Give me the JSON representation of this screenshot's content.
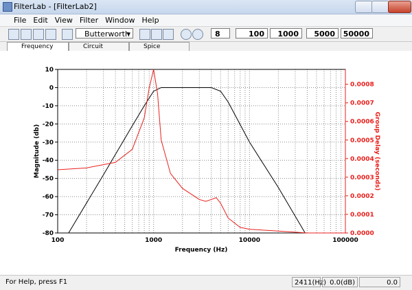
{
  "window": {
    "title": "FilterLab - [FilterLab2]"
  },
  "menu": [
    "File",
    "Edit",
    "View",
    "Filter",
    "Window",
    "Help"
  ],
  "toolbar": {
    "filter_type": "Butterworth",
    "order": "8",
    "frequencies": [
      "100",
      "1000",
      "5000",
      "50000"
    ]
  },
  "tabs": [
    "Frequency",
    "Circuit",
    "Spice"
  ],
  "chart_data": {
    "type": "line",
    "xlabel": "Frequency (Hz)",
    "ylabel": "Magnitude (db)",
    "y2label": "Group Delay (seconds)",
    "xscale": "log",
    "xlim": [
      100,
      100000
    ],
    "xticks": [
      100,
      1000,
      10000,
      100000
    ],
    "xminorticks": [
      200,
      300,
      400,
      500,
      600,
      700,
      800,
      900,
      2000,
      3000,
      4000,
      5000,
      6000,
      7000,
      8000,
      9000,
      20000,
      30000,
      40000,
      50000,
      60000,
      70000,
      80000,
      90000
    ],
    "ylim": [
      -80,
      10
    ],
    "yticks": [
      10,
      0,
      -10,
      -20,
      -30,
      -40,
      -50,
      -60,
      -70,
      -80
    ],
    "y2lim": [
      0,
      0.00088
    ],
    "y2ticks": [
      {
        "value": 0,
        "label": "0.0000"
      },
      0.0001,
      0.0002,
      0.0003,
      0.0004,
      0.0005,
      0.0006,
      0.0007,
      0.0008
    ],
    "grid": true,
    "series": [
      {
        "color": "#000000",
        "x": [
          130,
          300,
          600,
          800,
          1000,
          1200,
          2000,
          4000,
          5000,
          6000,
          10000,
          20000,
          38000
        ],
        "values": [
          -80,
          -48,
          -21,
          -10,
          -2,
          0,
          0,
          0,
          -2,
          -8,
          -30,
          -55,
          -80
        ]
      },
      {
        "color": "#e8201c",
        "axis": "y2",
        "x": [
          100,
          200,
          400,
          600,
          800,
          900,
          1000,
          1100,
          1200,
          1500,
          2000,
          3000,
          3500,
          4000,
          4500,
          5000,
          6000,
          8000,
          10000,
          20000,
          40000,
          100000
        ],
        "values": [
          0.00034,
          0.00035,
          0.00038,
          0.00045,
          0.00062,
          0.00078,
          0.00088,
          0.00075,
          0.0005,
          0.00032,
          0.00024,
          0.00018,
          0.00017,
          0.00018,
          0.00019,
          0.00016,
          8e-05,
          3e-05,
          2e-05,
          1e-05,
          0,
          0
        ]
      }
    ]
  },
  "status_bar": {
    "help": "For Help, press F1",
    "frequency": "2411(Hz)",
    "magnitude": "0.0(dB)",
    "delay": "0.0"
  }
}
